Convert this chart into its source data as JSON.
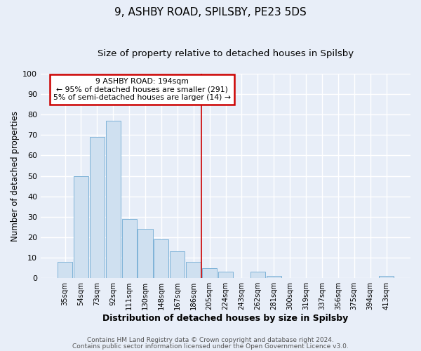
{
  "title": "9, ASHBY ROAD, SPILSBY, PE23 5DS",
  "subtitle": "Size of property relative to detached houses in Spilsby",
  "xlabel": "Distribution of detached houses by size in Spilsby",
  "ylabel": "Number of detached properties",
  "bar_labels": [
    "35sqm",
    "54sqm",
    "73sqm",
    "92sqm",
    "111sqm",
    "130sqm",
    "148sqm",
    "167sqm",
    "186sqm",
    "205sqm",
    "224sqm",
    "243sqm",
    "262sqm",
    "281sqm",
    "300sqm",
    "319sqm",
    "337sqm",
    "356sqm",
    "375sqm",
    "394sqm",
    "413sqm"
  ],
  "bar_values": [
    8,
    50,
    69,
    77,
    29,
    24,
    19,
    13,
    8,
    5,
    3,
    0,
    3,
    1,
    0,
    0,
    0,
    0,
    0,
    0,
    1
  ],
  "bar_color": "#cfe0f0",
  "bar_edgecolor": "#7fb3d8",
  "vline_x": 8.5,
  "vline_color": "#cc0000",
  "annotation_title": "9 ASHBY ROAD: 194sqm",
  "annotation_line1": "← 95% of detached houses are smaller (291)",
  "annotation_line2": "5% of semi-detached houses are larger (14) →",
  "annotation_box_edgecolor": "#cc0000",
  "footnote1": "Contains HM Land Registry data © Crown copyright and database right 2024.",
  "footnote2": "Contains public sector information licensed under the Open Government Licence v3.0.",
  "ylim": [
    0,
    100
  ],
  "background_color": "#e8eef8",
  "axes_background": "#e8eef8",
  "grid_color": "#ffffff",
  "title_fontsize": 11,
  "subtitle_fontsize": 9.5,
  "ylabel_fontsize": 8.5,
  "xlabel_fontsize": 9,
  "footnote_fontsize": 6.5
}
